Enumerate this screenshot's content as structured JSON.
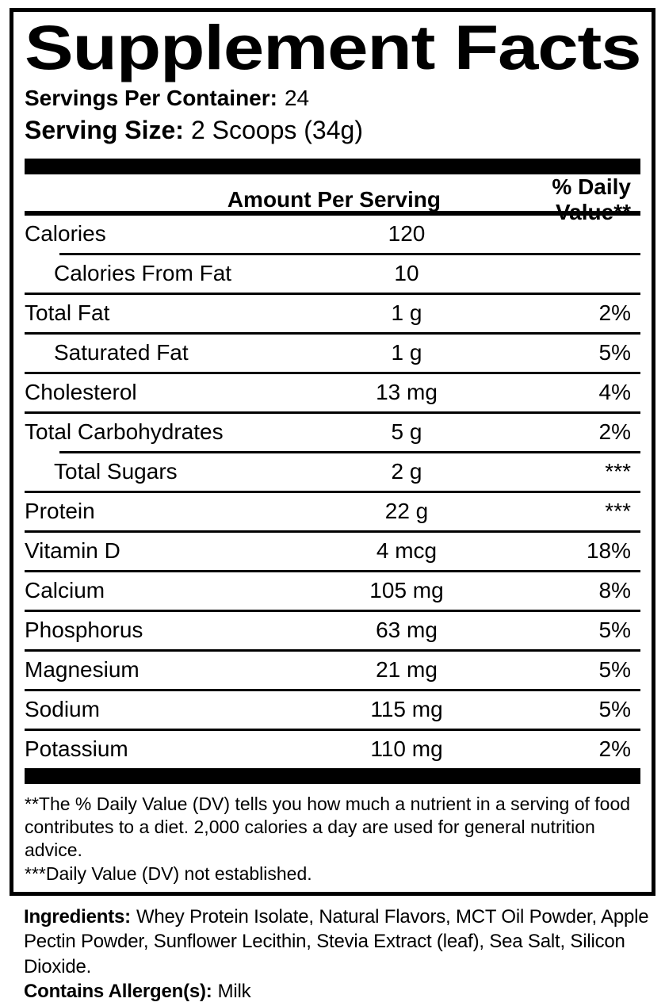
{
  "colors": {
    "text": "#000000",
    "background": "#ffffff"
  },
  "label": {
    "title": "Supplement Facts",
    "servings_per_container_label": "Servings Per Container:",
    "servings_per_container_value": "24",
    "serving_size_label": "Serving Size:",
    "serving_size_value": "2 Scoops (34g)",
    "table": {
      "amount_header": "Amount Per Serving",
      "dv_header": "% Daily Value**",
      "rows": [
        {
          "name": "Calories",
          "amount": "120",
          "dv": "",
          "indent": false,
          "sep_below": "indent"
        },
        {
          "name": "Calories From Fat",
          "amount": "10",
          "dv": "",
          "indent": true,
          "sep_below": "full"
        },
        {
          "name": "Total Fat",
          "amount": "1 g",
          "dv": "2%",
          "indent": false,
          "sep_below": "full"
        },
        {
          "name": "Saturated Fat",
          "amount": "1 g",
          "dv": "5%",
          "indent": true,
          "sep_below": "full"
        },
        {
          "name": "Cholesterol",
          "amount": "13 mg",
          "dv": "4%",
          "indent": false,
          "sep_below": "full"
        },
        {
          "name": "Total Carbohydrates",
          "amount": "5 g",
          "dv": "2%",
          "indent": false,
          "sep_below": "indent"
        },
        {
          "name": "Total Sugars",
          "amount": "2 g",
          "dv": "***",
          "indent": true,
          "sep_below": "full"
        },
        {
          "name": "Protein",
          "amount": "22 g",
          "dv": "***",
          "indent": false,
          "sep_below": "full"
        },
        {
          "name": "Vitamin D",
          "amount": "4 mcg",
          "dv": "18%",
          "indent": false,
          "sep_below": "full"
        },
        {
          "name": "Calcium",
          "amount": "105 mg",
          "dv": "8%",
          "indent": false,
          "sep_below": "full"
        },
        {
          "name": "Phosphorus",
          "amount": "63 mg",
          "dv": "5%",
          "indent": false,
          "sep_below": "full"
        },
        {
          "name": "Magnesium",
          "amount": "21 mg",
          "dv": "5%",
          "indent": false,
          "sep_below": "full"
        },
        {
          "name": "Sodium",
          "amount": "115 mg",
          "dv": "5%",
          "indent": false,
          "sep_below": "full"
        },
        {
          "name": "Potassium",
          "amount": "110 mg",
          "dv": "2%",
          "indent": false,
          "sep_below": "none"
        }
      ]
    },
    "footnotes": [
      "**The % Daily Value (DV) tells you how much a nutrient in a serving of food contributes to a diet. 2,000 calories a day are used for general nutrition advice.",
      "***Daily Value (DV) not established."
    ]
  },
  "ingredients": {
    "label": "Ingredients:",
    "text": "Whey Protein Isolate, Natural Flavors, MCT Oil Powder, Apple Pectin Powder, Sunflower Lecithin, Stevia Extract (leaf), Sea Salt, Silicon Dioxide.",
    "allergen_label": "Contains Allergen(s):",
    "allergen_value": "Milk"
  }
}
